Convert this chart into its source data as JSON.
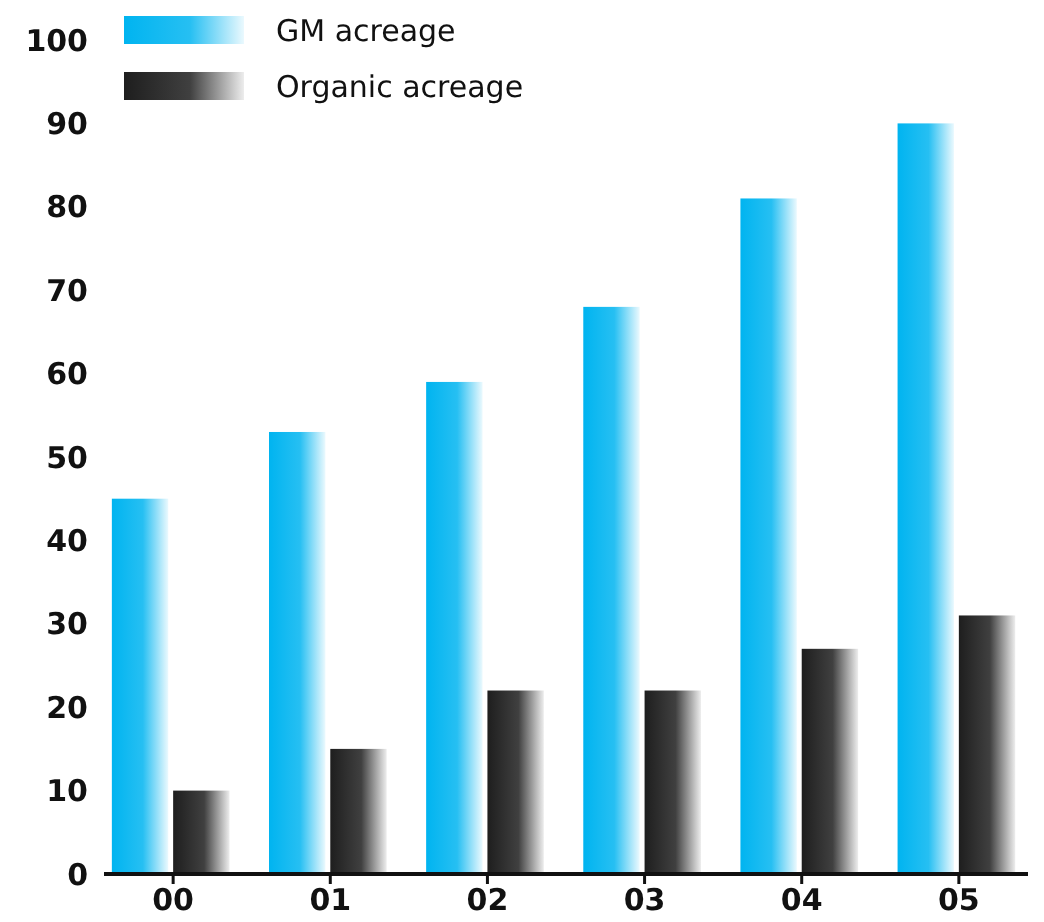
{
  "chart_data": {
    "type": "bar",
    "categories": [
      "00",
      "01",
      "02",
      "03",
      "04",
      "05"
    ],
    "series": [
      {
        "name": "GM acreage",
        "color": "#00b4f0",
        "values": [
          45,
          53,
          59,
          68,
          81,
          90
        ]
      },
      {
        "name": "Organic acreage",
        "color": "#1e1e1e",
        "values": [
          10,
          15,
          22,
          22,
          27,
          31
        ]
      }
    ],
    "ylim": [
      0,
      100
    ],
    "yticks": [
      0,
      10,
      20,
      30,
      40,
      50,
      60,
      70,
      80,
      90,
      100
    ],
    "legend": "top left",
    "grid": false
  }
}
